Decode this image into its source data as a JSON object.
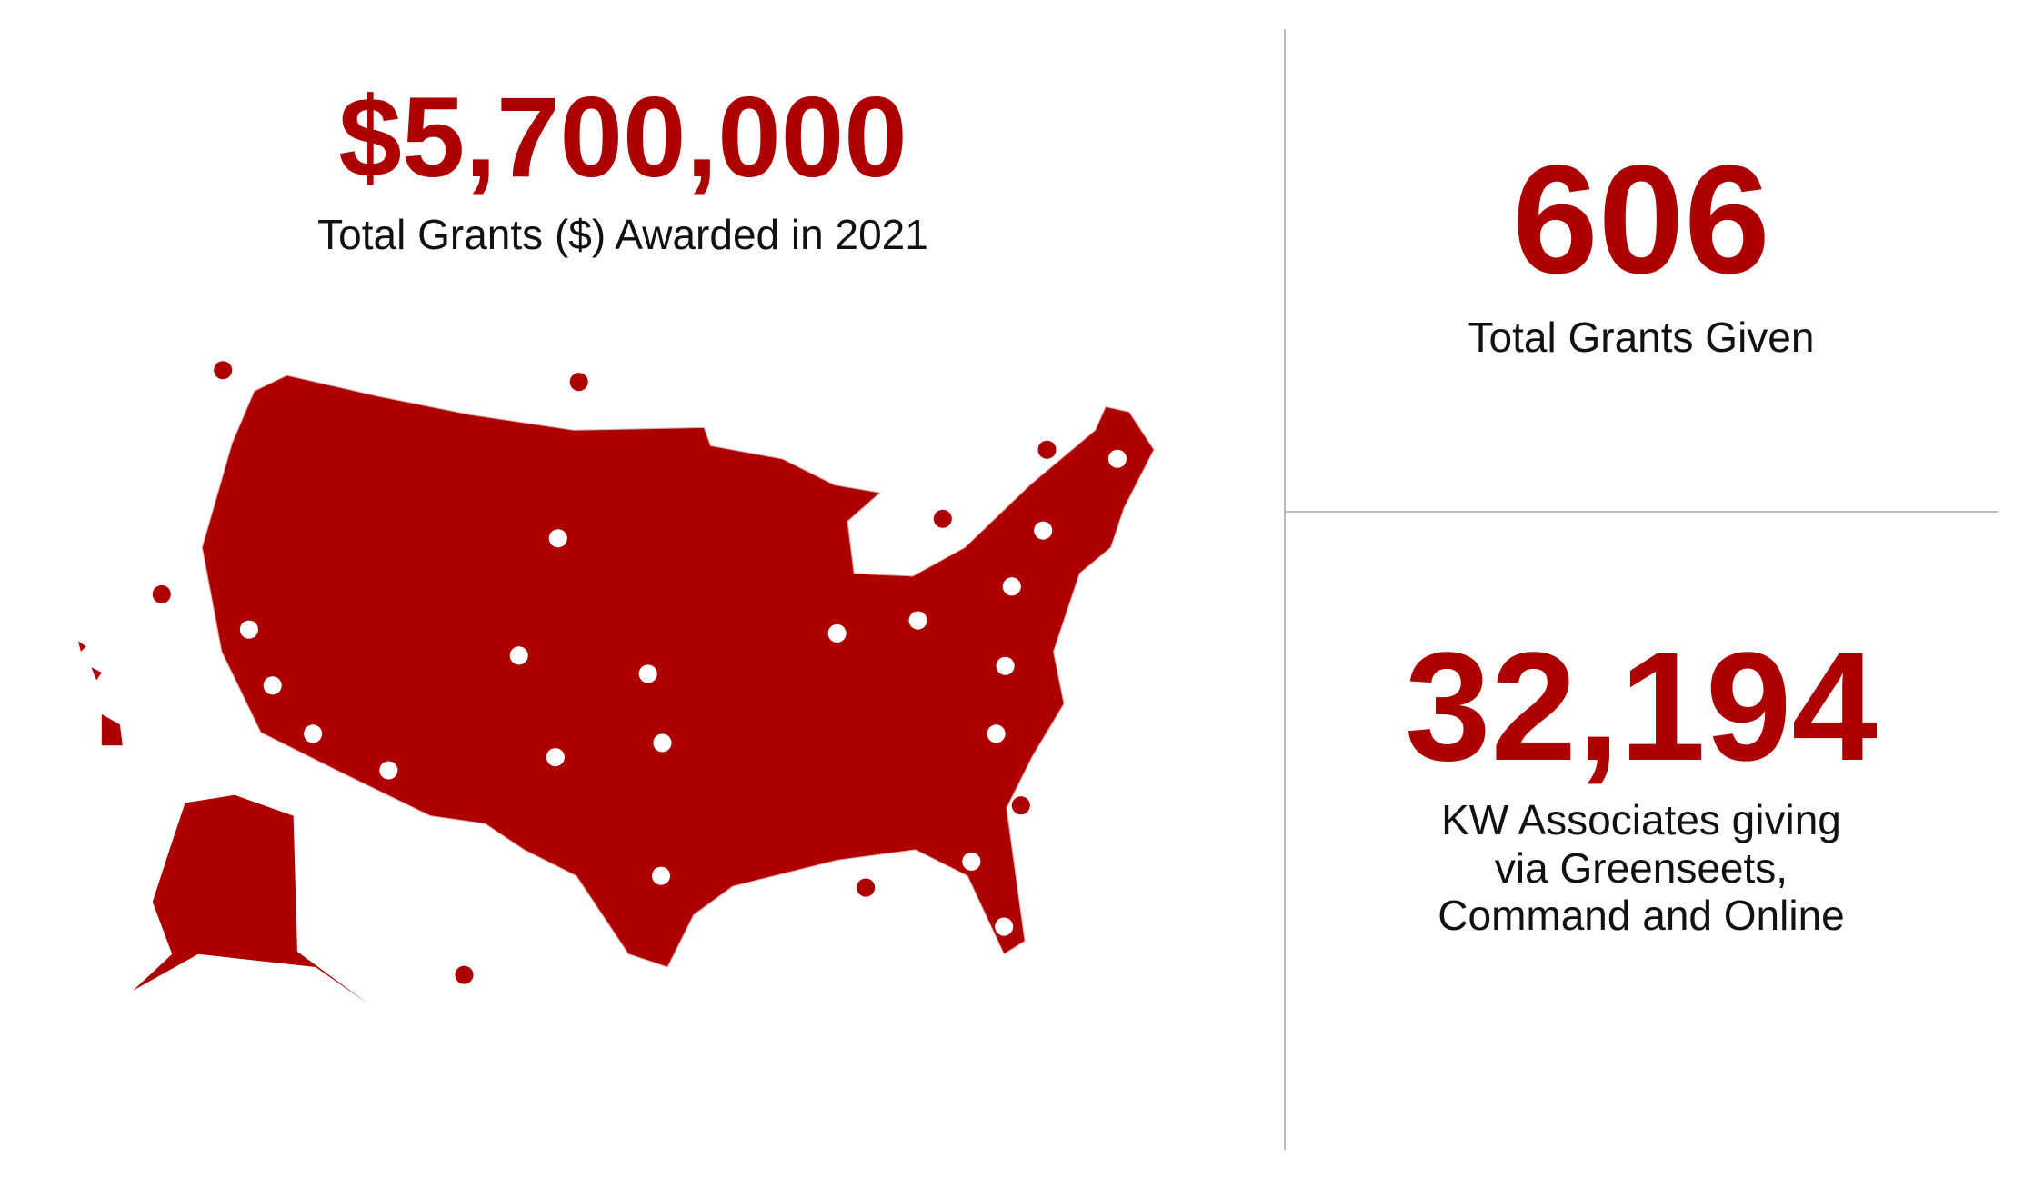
{
  "stats": [
    {
      "value": "$5,700,000",
      "label": "Total Grants ($) Awarded in 2021"
    },
    {
      "value": "606",
      "label": "Total Grants Given"
    },
    {
      "value": "32,194",
      "label_lines": [
        "KW Associates giving",
        "via Greenseets,",
        "Command and Online"
      ]
    }
  ]
}
